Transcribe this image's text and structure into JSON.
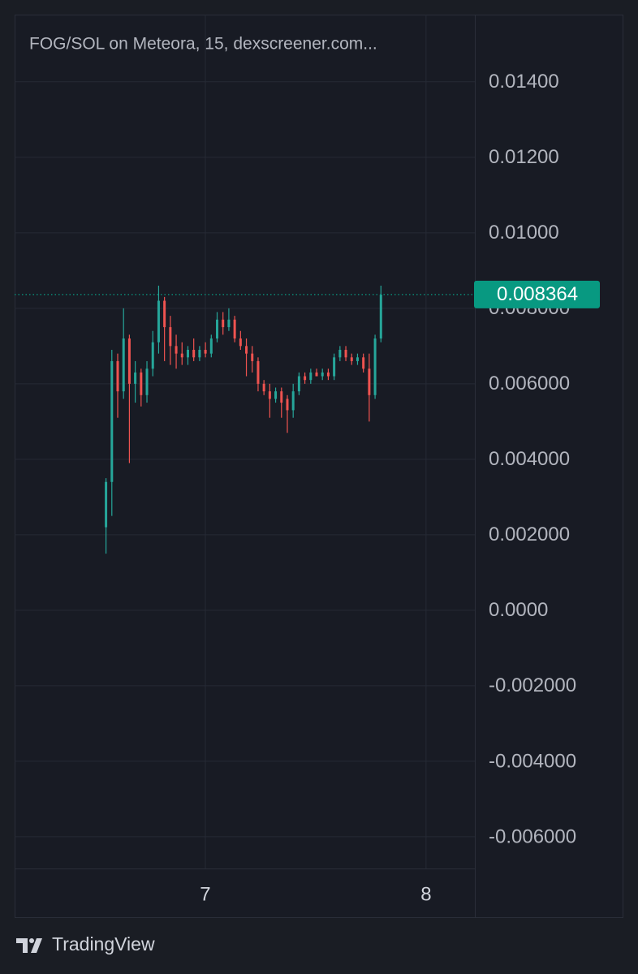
{
  "chart_data": {
    "type": "candlestick",
    "title": "FOG/SOL on Meteora, 15, dexscreener.com...",
    "brand": "TradingView",
    "x": [
      6.55,
      6.5765,
      6.603,
      6.6295,
      6.656,
      6.6825,
      6.709,
      6.7355,
      6.762,
      6.7885,
      6.815,
      6.8415,
      6.868,
      6.8945,
      6.921,
      6.9475,
      6.974,
      7.0005,
      7.027,
      7.0535,
      7.08,
      7.1065,
      7.133,
      7.1595,
      7.186,
      7.2125,
      7.239,
      7.2655,
      7.292,
      7.3185,
      7.345,
      7.3715,
      7.398,
      7.4245,
      7.451,
      7.4775,
      7.504,
      7.5305,
      7.557,
      7.5835,
      7.61,
      7.6365,
      7.663,
      7.6895,
      7.716,
      7.7425,
      7.769,
      7.7955
    ],
    "open": [
      0.0022,
      0.0034,
      0.0066,
      0.0058,
      0.0072,
      0.006,
      0.0063,
      0.0057,
      0.0064,
      0.0071,
      0.0082,
      0.0075,
      0.007,
      0.0068,
      0.0067,
      0.0069,
      0.0067,
      0.0069,
      0.0068,
      0.0072,
      0.0077,
      0.0075,
      0.0077,
      0.0072,
      0.007,
      0.0068,
      0.0066,
      0.006,
      0.0058,
      0.0056,
      0.0058,
      0.0056,
      0.0053,
      0.0058,
      0.0062,
      0.0061,
      0.0063,
      0.0062,
      0.0063,
      0.0062,
      0.0067,
      0.0069,
      0.0067,
      0.0066,
      0.0067,
      0.0064,
      0.0057,
      0.0072
    ],
    "high": [
      0.0035,
      0.0069,
      0.0068,
      0.008,
      0.0073,
      0.0066,
      0.0064,
      0.0066,
      0.0074,
      0.0086,
      0.0083,
      0.0078,
      0.0073,
      0.0071,
      0.007,
      0.0072,
      0.007,
      0.0071,
      0.0073,
      0.0079,
      0.0079,
      0.008,
      0.0078,
      0.0074,
      0.0072,
      0.007,
      0.0067,
      0.0061,
      0.006,
      0.0059,
      0.0059,
      0.0057,
      0.006,
      0.0063,
      0.0063,
      0.0064,
      0.0064,
      0.0064,
      0.0064,
      0.0068,
      0.007,
      0.007,
      0.0068,
      0.0068,
      0.0068,
      0.0068,
      0.0073,
      0.0086
    ],
    "low": [
      0.0015,
      0.0025,
      0.0051,
      0.0056,
      0.0039,
      0.0055,
      0.0054,
      0.0055,
      0.0062,
      0.0068,
      0.0066,
      0.0065,
      0.0064,
      0.0065,
      0.0065,
      0.0066,
      0.0066,
      0.0067,
      0.0067,
      0.0071,
      0.0073,
      0.0074,
      0.0071,
      0.0069,
      0.0062,
      0.0063,
      0.0058,
      0.0057,
      0.0051,
      0.0055,
      0.0051,
      0.0047,
      0.0051,
      0.0057,
      0.006,
      0.006,
      0.0062,
      0.0061,
      0.0061,
      0.0061,
      0.0066,
      0.0066,
      0.0065,
      0.0065,
      0.0063,
      0.005,
      0.0056,
      0.0071
    ],
    "close": [
      0.0034,
      0.0066,
      0.0058,
      0.0072,
      0.006,
      0.0063,
      0.0057,
      0.0064,
      0.0071,
      0.0082,
      0.0075,
      0.007,
      0.0068,
      0.0067,
      0.0069,
      0.0067,
      0.0069,
      0.0068,
      0.0072,
      0.0077,
      0.0075,
      0.0077,
      0.0072,
      0.007,
      0.0068,
      0.0066,
      0.006,
      0.0058,
      0.0056,
      0.0058,
      0.0055,
      0.0053,
      0.0058,
      0.0062,
      0.0061,
      0.0063,
      0.0062,
      0.0063,
      0.0062,
      0.0067,
      0.0069,
      0.0067,
      0.0066,
      0.0067,
      0.0064,
      0.0057,
      0.0072,
      0.008364
    ],
    "up_color": "#26a69a",
    "down_color": "#ef5350",
    "last_price": 0.008364,
    "last_price_color": "#089981",
    "xlim": [
      6.136,
      8.221
    ],
    "xticks": [
      7,
      8
    ],
    "ylim": [
      -0.00684,
      0.01578
    ],
    "yticks": [
      {
        "value": 0.014,
        "label": "0.01400"
      },
      {
        "value": 0.012,
        "label": "0.01200"
      },
      {
        "value": 0.01,
        "label": "0.01000"
      },
      {
        "value": 0.008,
        "label": "0.008000"
      },
      {
        "value": 0.006,
        "label": "0.006000"
      },
      {
        "value": 0.004,
        "label": "0.004000"
      },
      {
        "value": 0.002,
        "label": "0.002000"
      },
      {
        "value": 0,
        "label": "0.0000"
      },
      {
        "value": -0.002,
        "label": "-0.002000"
      },
      {
        "value": -0.004,
        "label": "-0.004000"
      },
      {
        "value": -0.006,
        "label": "-0.006000"
      }
    ],
    "grid": true
  }
}
